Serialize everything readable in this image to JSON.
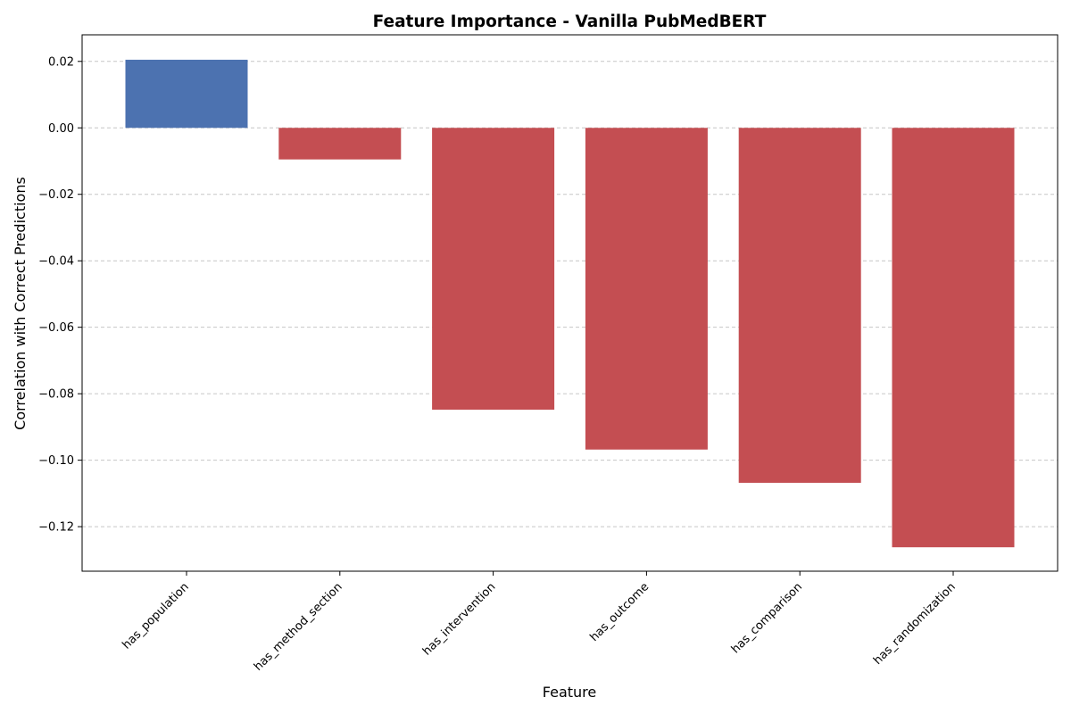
{
  "chart_data": {
    "type": "bar",
    "title": "Feature Importance - Vanilla PubMedBERT",
    "xlabel": "Feature",
    "ylabel": "Correlation with Correct Predictions",
    "categories": [
      "has_population",
      "has_method_section",
      "has_intervention",
      "has_outcome",
      "has_comparison",
      "has_randomization"
    ],
    "values": [
      0.0205,
      -0.0095,
      -0.0848,
      -0.0968,
      -0.1068,
      -0.1262
    ],
    "ylim": [
      -0.1334,
      0.028
    ],
    "yticks": [
      0.02,
      0.0,
      -0.02,
      -0.04,
      -0.06,
      -0.08,
      -0.1,
      -0.12
    ],
    "ytick_labels": [
      "0.02",
      "0.00",
      "−0.02",
      "−0.04",
      "−0.06",
      "−0.08",
      "−0.10",
      "−0.12"
    ],
    "grid": "y-dashed",
    "colors": {
      "positive": "#4c72b0",
      "negative": "#c44e52"
    }
  }
}
